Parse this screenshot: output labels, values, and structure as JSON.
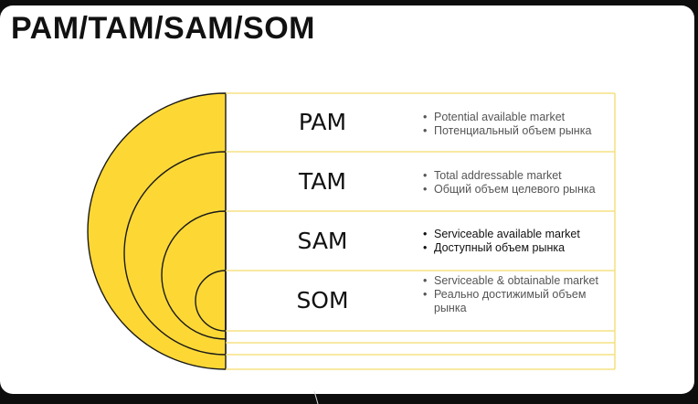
{
  "slide": {
    "title": "PAM/TAM/SAM/SOM"
  },
  "colors": {
    "accent": "#fdd835",
    "border": "#f3dc6a",
    "arc": "#1a1a1a"
  },
  "rows": [
    {
      "label": "PAM",
      "bullets": [
        "Potential available market",
        "Потенциальный объем рынка"
      ]
    },
    {
      "label": "TAM",
      "bullets": [
        "Total addressable market",
        "Общий объем целевого рынка"
      ]
    },
    {
      "label": "SAM",
      "bullets": [
        "Serviceable available market",
        "Доступный объем рынка"
      ]
    },
    {
      "label": "SOM",
      "bullets": [
        "Serviceable & obtainable market",
        "Реально достижимый объем рынка"
      ]
    }
  ]
}
